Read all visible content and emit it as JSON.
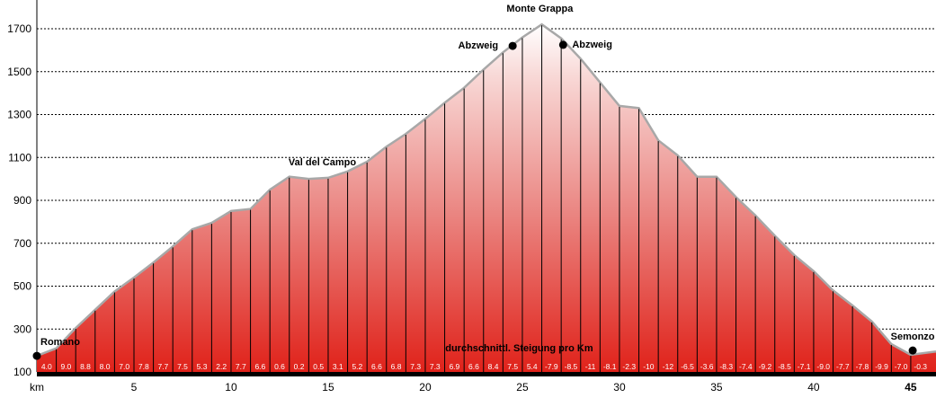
{
  "chart_data": {
    "type": "area",
    "xlabel": "km",
    "x_ticks": [
      5,
      10,
      15,
      20,
      25,
      30,
      35,
      40
    ],
    "x_end_label": "45",
    "xlim": [
      0,
      46.3
    ],
    "ylim": [
      100,
      1750
    ],
    "y_ticks": [
      100,
      300,
      500,
      700,
      900,
      1100,
      1300,
      1500,
      1700
    ],
    "grid": "horizontal dotted",
    "profile": {
      "x": [
        0,
        1,
        2,
        3,
        4,
        5,
        6,
        7,
        8,
        9,
        10,
        11,
        12,
        13,
        14,
        15,
        16,
        17,
        18,
        19,
        20,
        21,
        22,
        23,
        24,
        25,
        26,
        27,
        28,
        29,
        30,
        31,
        32,
        33,
        34,
        35,
        36,
        37,
        38,
        39,
        40,
        41,
        42,
        43,
        44,
        45,
        46.3
      ],
      "y": [
        175,
        210,
        305,
        390,
        475,
        540,
        610,
        685,
        765,
        795,
        850,
        860,
        950,
        1010,
        1000,
        1005,
        1035,
        1080,
        1150,
        1210,
        1280,
        1355,
        1425,
        1510,
        1590,
        1660,
        1720,
        1655,
        1560,
        1450,
        1340,
        1330,
        1180,
        1110,
        1010,
        1010,
        915,
        830,
        735,
        645,
        570,
        480,
        410,
        335,
        230,
        180,
        195
      ]
    },
    "gradient_label": "durchschnittl. Steigung pro Km",
    "gradients": [
      "4.0",
      "9.0",
      "8.8",
      "8.0",
      "7.0",
      "7.8",
      "7.7",
      "7.5",
      "5.3",
      "2.2",
      "7.7",
      "6.6",
      "0.6",
      "0.2",
      "0.5",
      "3.1",
      "5.2",
      "6.6",
      "6.8",
      "7.3",
      "7.3",
      "6.9",
      "6.6",
      "8.4",
      "7.5",
      "5.4",
      "-7.9",
      "-8.5",
      "-11",
      "-8.1",
      "-2.3",
      "-10",
      "-12",
      "-6.5",
      "-3.6",
      "-8.3",
      "-7.4",
      "-9.2",
      "-8.5",
      "-7.1",
      "-9.0",
      "-7.7",
      "-7.8",
      "-9.9",
      "-7.0",
      "-0.3"
    ],
    "waypoints": [
      {
        "name": "Romano",
        "x": 0,
        "y": 175,
        "dot": true
      },
      {
        "name": "Val del Campo",
        "x": 14.7,
        "y": 1005,
        "dot": false
      },
      {
        "name": "Abzweig",
        "x": 24.5,
        "y": 1620,
        "dot": true
      },
      {
        "name": "Monte Grappa",
        "x": 25.9,
        "y": 1720,
        "dot": false
      },
      {
        "name": "Abzweig",
        "x": 27.1,
        "y": 1625,
        "dot": true
      },
      {
        "name": "Semonzo",
        "x": 45.1,
        "y": 200,
        "dot": true
      }
    ]
  }
}
